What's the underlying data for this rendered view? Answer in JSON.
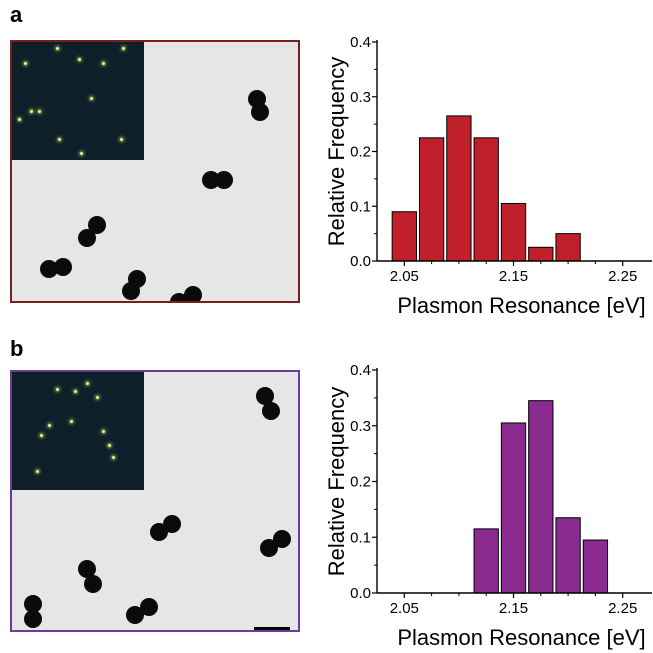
{
  "panels": [
    {
      "label": "a",
      "frame_color": "#7a1f1f",
      "bar_color": "#c0202a",
      "chart_data": {
        "type": "bar",
        "bin_centers": [
          2.05,
          2.075,
          2.1,
          2.125,
          2.15,
          2.175,
          2.2,
          2.225
        ],
        "values": [
          0.09,
          0.225,
          0.265,
          0.225,
          0.105,
          0.025,
          0.05,
          null
        ],
        "xlabel": "Plasmon Resonance [eV]",
        "ylabel": "Relative Frequency",
        "xticks": [
          "2.05",
          "2.15",
          "2.25"
        ],
        "yticks": [
          "0.0",
          "0.1",
          "0.2",
          "0.3",
          "0.4"
        ],
        "ylim": [
          0,
          0.4
        ],
        "xlim": [
          2.025,
          2.275
        ]
      }
    },
    {
      "label": "b",
      "frame_color": "#6b3a9a",
      "bar_color": "#8b2a8f",
      "chart_data": {
        "type": "bar",
        "bin_centers": [
          2.125,
          2.15,
          2.175,
          2.2,
          2.225,
          2.25
        ],
        "values": [
          0.115,
          0.305,
          0.345,
          0.135,
          0.095,
          null
        ],
        "xlabel": "Plasmon Resonance [eV]",
        "ylabel": "Relative Frequency",
        "xticks": [
          "2.05",
          "2.15",
          "2.25"
        ],
        "yticks": [
          "0.0",
          "0.1",
          "0.2",
          "0.3",
          "0.4"
        ],
        "ylim": [
          0,
          0.4
        ],
        "xlim": [
          2.025,
          2.275
        ]
      }
    }
  ]
}
